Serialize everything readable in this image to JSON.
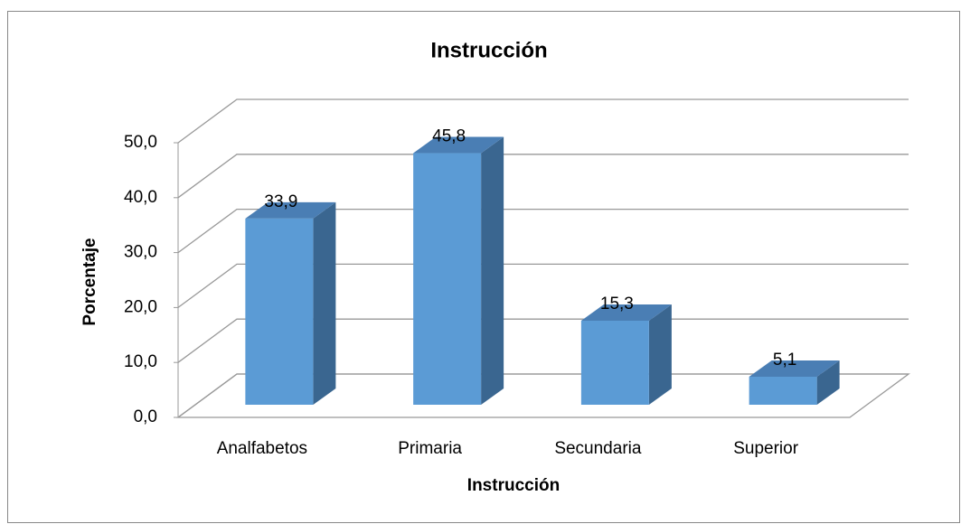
{
  "chart_data": {
    "type": "bar3d",
    "title": "Instrucción",
    "x_label": "Instrucción",
    "y_label": "Porcentaje",
    "categories": [
      "Analfabetos",
      "Primaria",
      "Secundaria",
      "Superior"
    ],
    "values": [
      33.9,
      45.8,
      15.3,
      5.1
    ],
    "value_labels": [
      "33,9",
      "45,8",
      "15,3",
      "5,1"
    ],
    "color": "#5b9bd5",
    "ylim": [
      0,
      50
    ],
    "yticks": [
      {
        "value": 0,
        "label": "0,0"
      },
      {
        "value": 10,
        "label": "10,0"
      },
      {
        "value": 20,
        "label": "20,0"
      },
      {
        "value": 30,
        "label": "30,0"
      },
      {
        "value": 40,
        "label": "40,0"
      },
      {
        "value": 50,
        "label": "50,0"
      }
    ],
    "grid": true
  }
}
